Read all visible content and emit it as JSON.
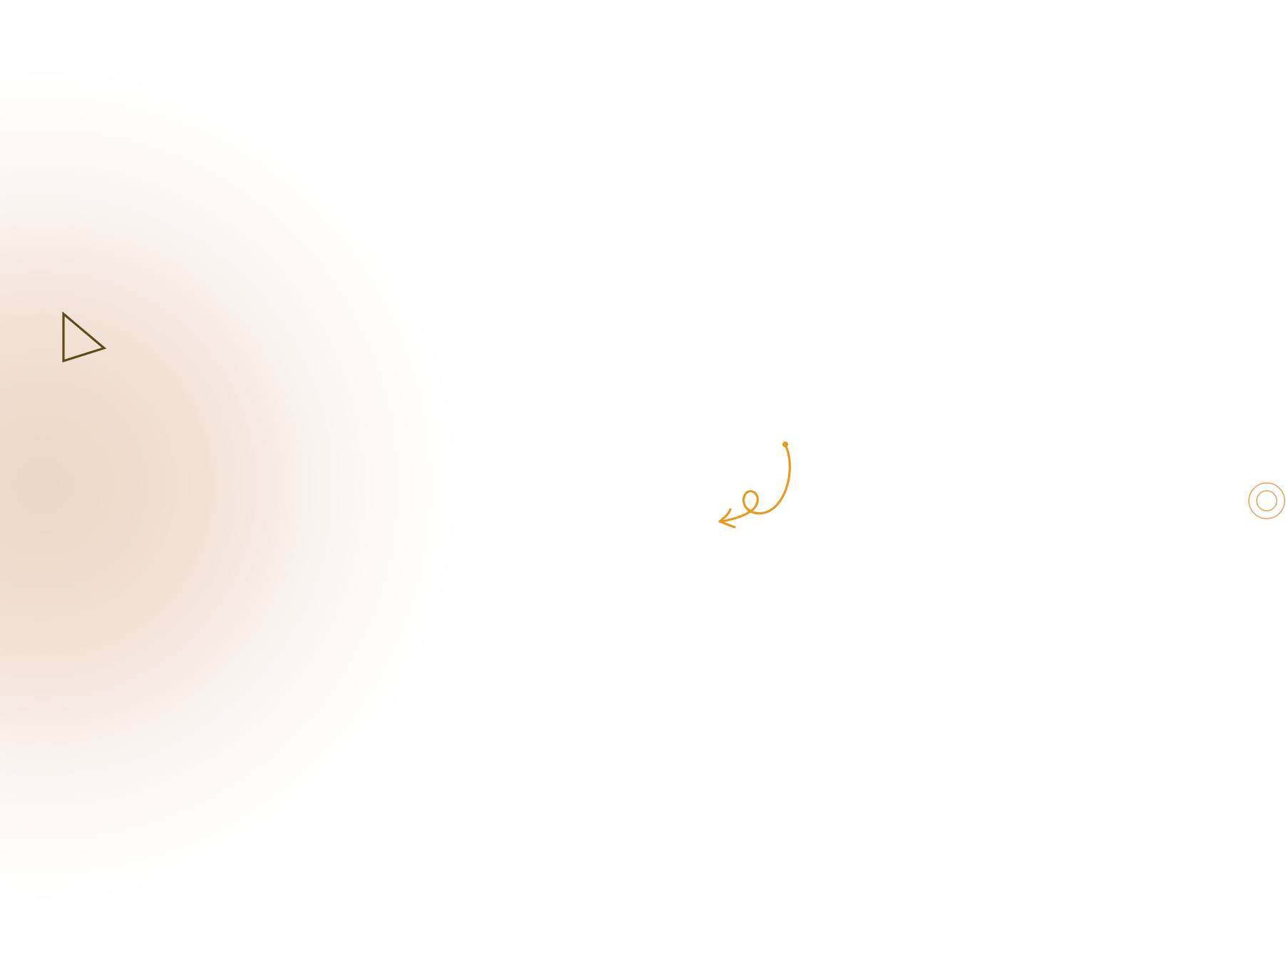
{
  "decorations": {
    "glow_color": "#ECD3C1",
    "triangle": {
      "icon": "triangle-outline-icon",
      "color": "#5E4A1C"
    },
    "squiggle": {
      "icon": "curly-arrow-icon",
      "color": "#E89A1C"
    },
    "rings": {
      "icon": "concentric-circles-icon",
      "color": "#E9A55E"
    }
  }
}
